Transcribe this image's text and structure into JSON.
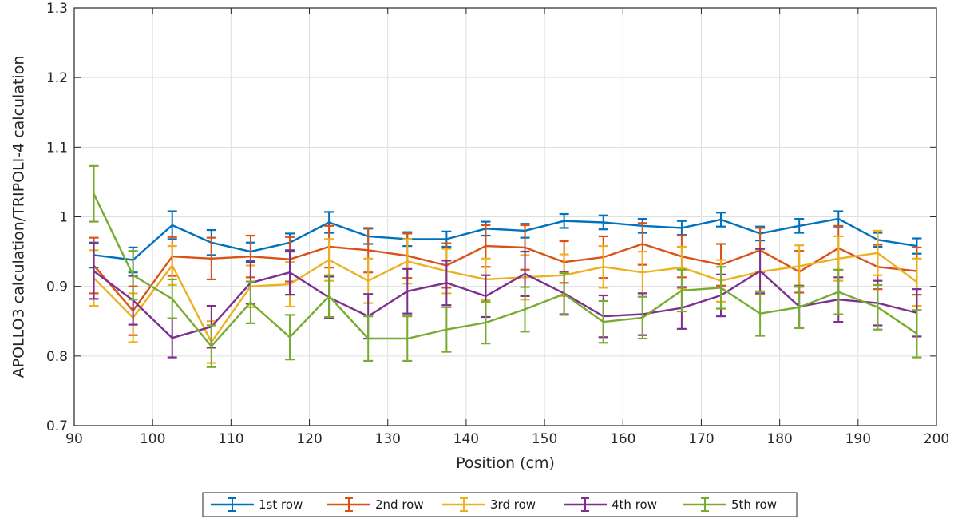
{
  "chart_data": {
    "type": "line",
    "xlabel": "Position (cm)",
    "ylabel": "APOLLO3 calculation/TRIPOLI-4 calculation",
    "xlim": [
      90,
      200
    ],
    "ylim": [
      0.7,
      1.3
    ],
    "xticks": [
      "90",
      "100",
      "110",
      "120",
      "130",
      "140",
      "150",
      "160",
      "170",
      "180",
      "190",
      "200"
    ],
    "yticks": [
      "0.7",
      "0.8",
      "0.9",
      "1",
      "1.1",
      "1.2",
      "1.3"
    ],
    "grid": true,
    "legend_position": "bottom-outside",
    "x": [
      92.5,
      97.5,
      102.5,
      107.5,
      112.5,
      117.5,
      122.5,
      127.5,
      132.5,
      137.5,
      142.5,
      147.5,
      152.5,
      157.5,
      162.5,
      167.5,
      172.5,
      177.5,
      182.5,
      187.5,
      192.5,
      197.5
    ],
    "series": [
      {
        "name": "1st row",
        "color": "#0072BD",
        "values": [
          0.945,
          0.938,
          0.988,
          0.963,
          0.95,
          0.963,
          0.992,
          0.972,
          0.968,
          0.968,
          0.983,
          0.98,
          0.994,
          0.992,
          0.987,
          0.984,
          0.996,
          0.976,
          0.987,
          0.997,
          0.967,
          0.958
        ],
        "errors": [
          0.018,
          0.018,
          0.02,
          0.018,
          0.013,
          0.013,
          0.015,
          0.011,
          0.01,
          0.011,
          0.01,
          0.01,
          0.01,
          0.01,
          0.01,
          0.01,
          0.01,
          0.01,
          0.01,
          0.011,
          0.01,
          0.011
        ]
      },
      {
        "name": "2nd row",
        "color": "#D95319",
        "values": [
          0.93,
          0.865,
          0.943,
          0.94,
          0.943,
          0.939,
          0.957,
          0.952,
          0.944,
          0.93,
          0.958,
          0.956,
          0.935,
          0.942,
          0.961,
          0.943,
          0.931,
          0.952,
          0.921,
          0.955,
          0.928,
          0.922
        ]
      },
      {
        "name": "3rd row",
        "color": "#EDB120",
        "values": [
          0.912,
          0.855,
          0.93,
          0.82,
          0.9,
          0.903,
          0.938,
          0.908,
          0.936,
          0.922,
          0.91,
          0.913,
          0.916,
          0.928,
          0.92,
          0.927,
          0.908,
          0.921,
          0.929,
          0.94,
          0.948,
          0.906
        ]
      },
      {
        "name": "4th row",
        "color": "#7E2F8E",
        "values": [
          0.922,
          0.88,
          0.826,
          0.842,
          0.905,
          0.92,
          0.884,
          0.857,
          0.893,
          0.905,
          0.886,
          0.918,
          0.89,
          0.857,
          0.86,
          0.869,
          0.887,
          0.922,
          0.871,
          0.881,
          0.876,
          0.862
        ]
      },
      {
        "name": "5th row",
        "color": "#77AC30",
        "values": [
          1.033,
          0.916,
          0.882,
          0.814,
          0.877,
          0.827,
          0.886,
          0.825,
          0.825,
          0.838,
          0.848,
          0.867,
          0.889,
          0.849,
          0.855,
          0.894,
          0.898,
          0.861,
          0.87,
          0.892,
          0.87,
          0.832
        ]
      }
    ]
  }
}
